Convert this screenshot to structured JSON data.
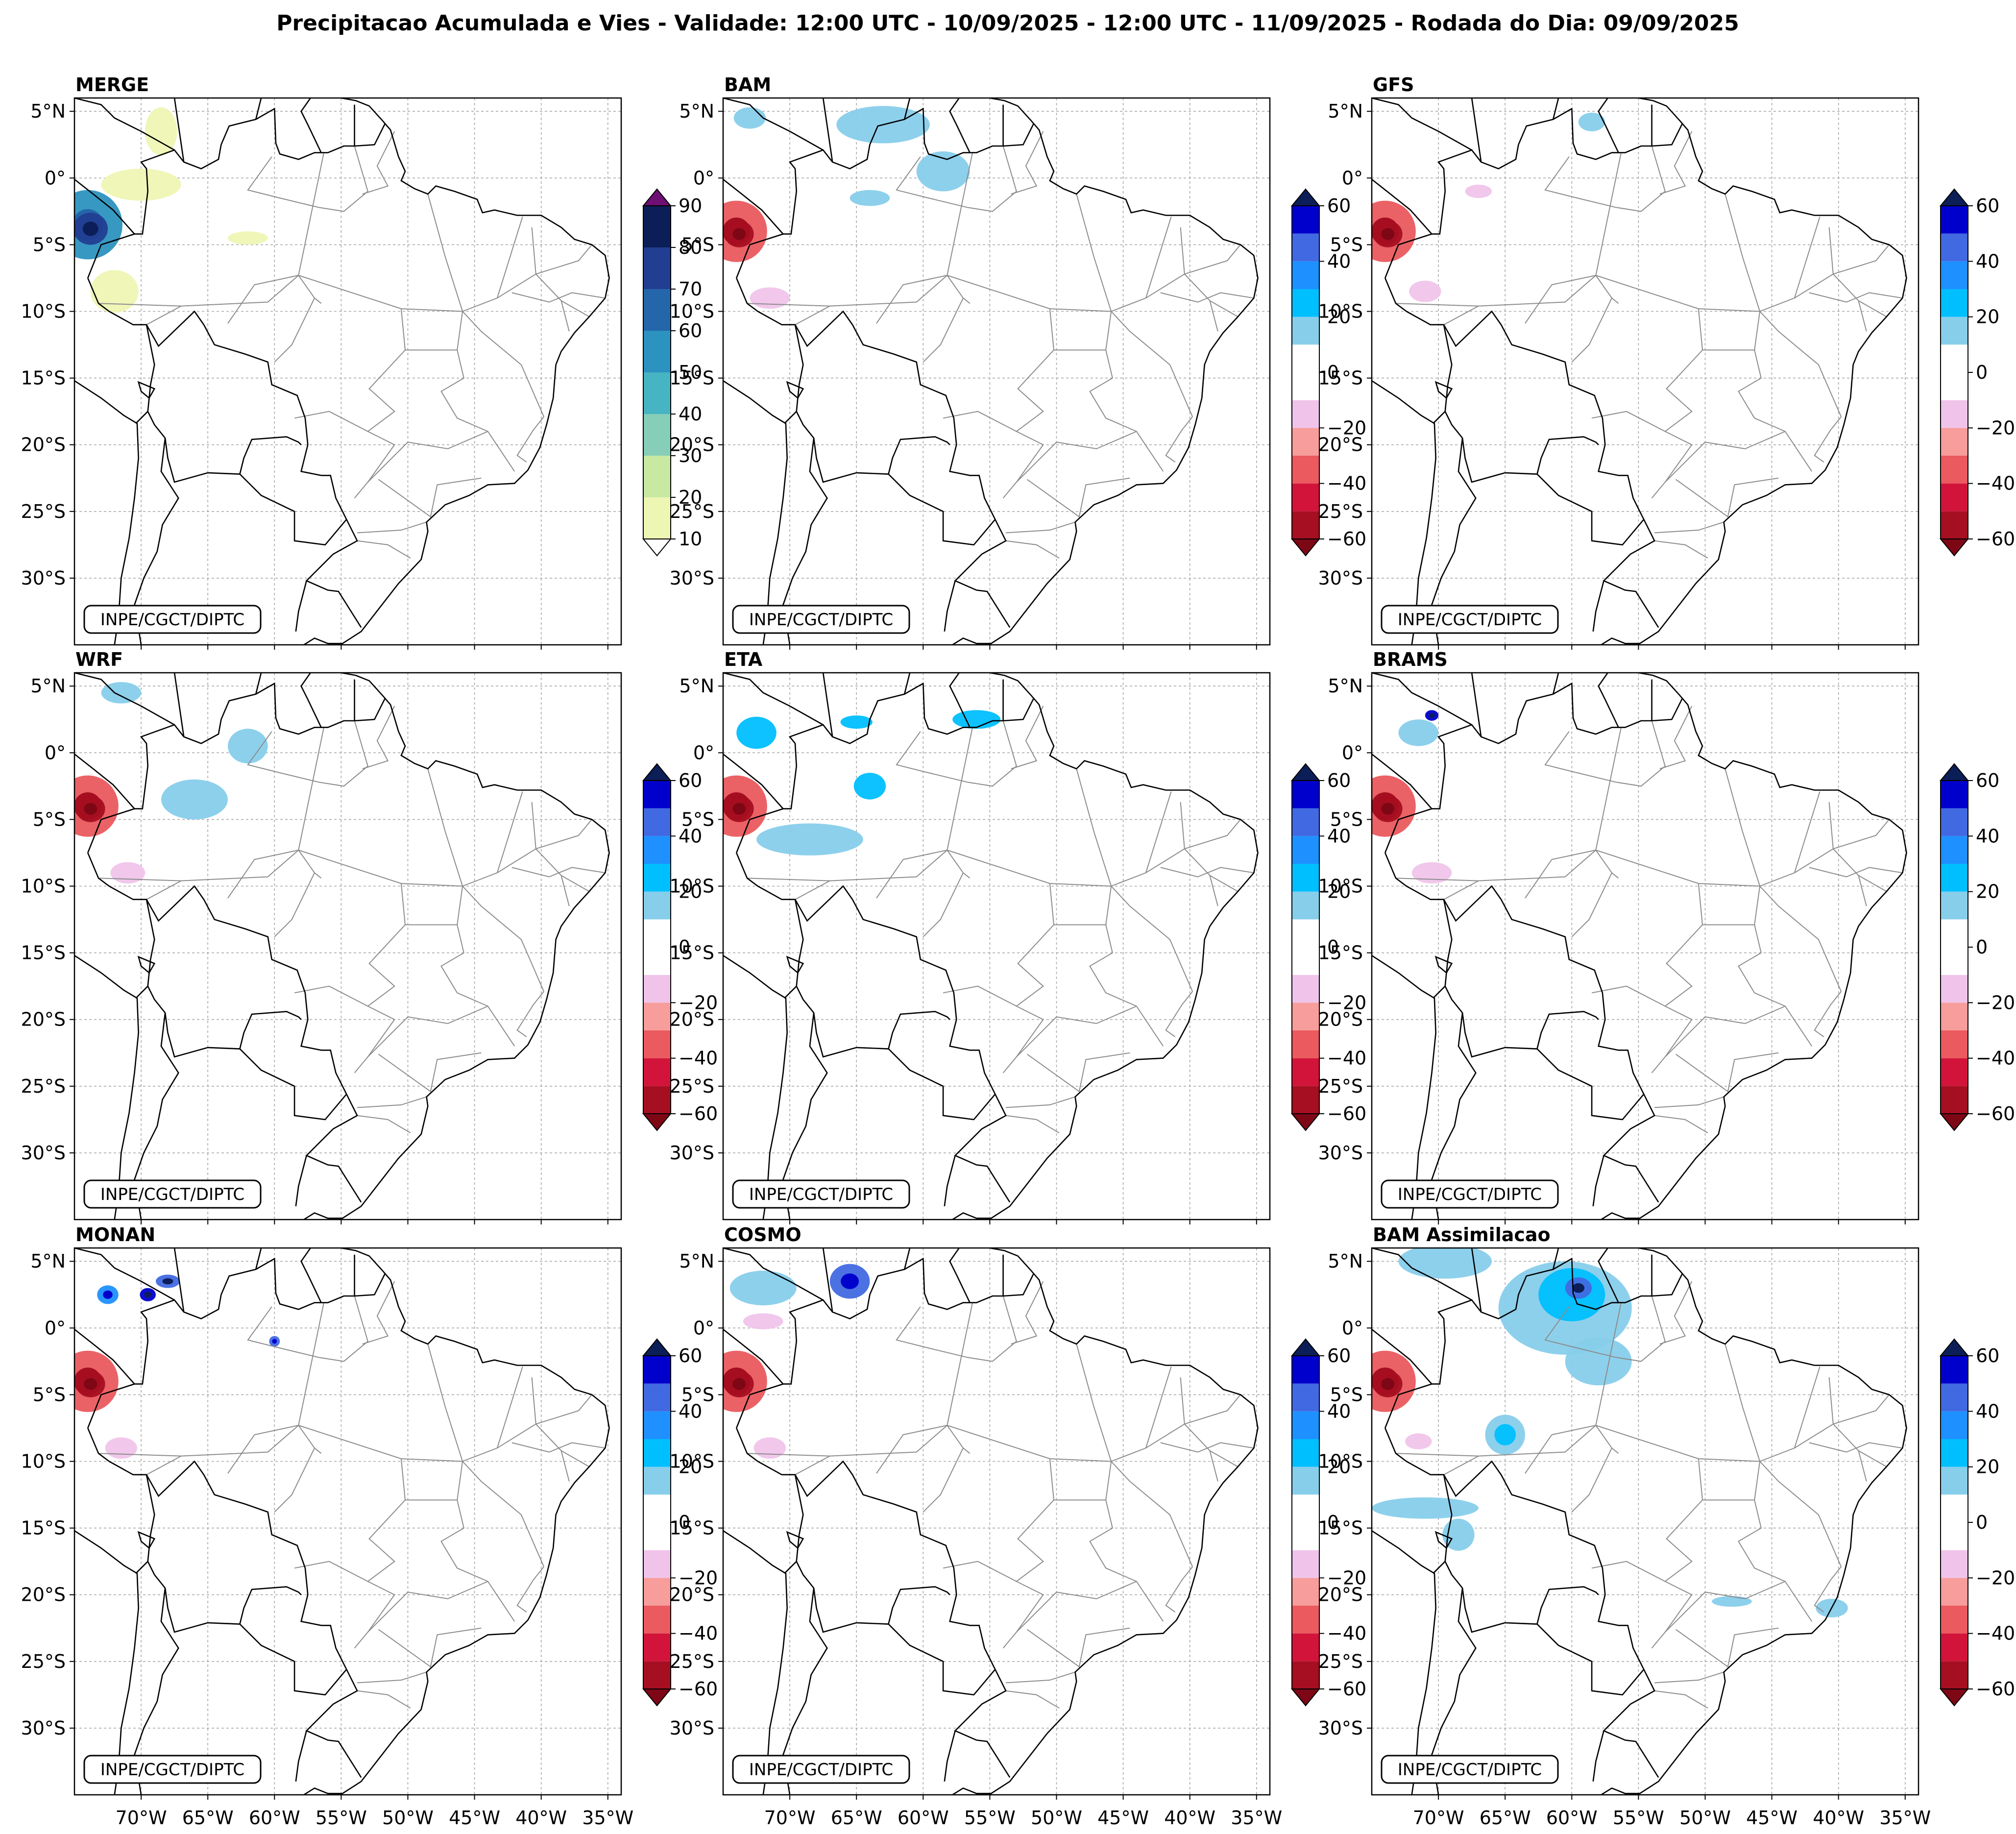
{
  "figure": {
    "title": "Precipitacao Acumulada e Vies - Validade: 12:00 UTC - 10/09/2025 - 12:00 UTC - 11/09/2025 - Rodada do Dia: 09/09/2025"
  },
  "credit_text": "INPE/CGCT/DIPTC",
  "chart_data": {
    "type": "heatmap",
    "description_units": "mm",
    "map_extent": {
      "lon": [
        -75,
        -34
      ],
      "lat": [
        -35,
        6
      ]
    },
    "lat_ticks": [
      {
        "value": 5,
        "label": "5°N"
      },
      {
        "value": 0,
        "label": "0°"
      },
      {
        "value": -5,
        "label": "5°S"
      },
      {
        "value": -10,
        "label": "10°S"
      },
      {
        "value": -15,
        "label": "15°S"
      },
      {
        "value": -20,
        "label": "20°S"
      },
      {
        "value": -25,
        "label": "25°S"
      },
      {
        "value": -30,
        "label": "30°S"
      }
    ],
    "lon_ticks": [
      {
        "value": -70,
        "label": "70°W"
      },
      {
        "value": -65,
        "label": "65°W"
      },
      {
        "value": -60,
        "label": "60°W"
      },
      {
        "value": -55,
        "label": "55°W"
      },
      {
        "value": -50,
        "label": "50°W"
      },
      {
        "value": -45,
        "label": "45°W"
      },
      {
        "value": -40,
        "label": "40°W"
      },
      {
        "value": -35,
        "label": "35°W"
      }
    ],
    "colorbars": {
      "precip": {
        "levels": [
          10,
          20,
          30,
          40,
          50,
          60,
          70,
          80,
          90
        ],
        "tick_labels": [
          "10",
          "20",
          "30",
          "40",
          "50",
          "60",
          "70",
          "80",
          "90"
        ],
        "colors": [
          "#eef6b4",
          "#c8e9a1",
          "#86ceb8",
          "#47b4c3",
          "#2c92bf",
          "#2466aa",
          "#223e92",
          "#0c1e57"
        ],
        "under_color": "#ffffff",
        "over_color": "#6d0f73"
      },
      "bias": {
        "levels": [
          -60,
          -50,
          -40,
          -30,
          -20,
          -10,
          10,
          20,
          30,
          40,
          50,
          60
        ],
        "tick_labels": [
          "-60",
          "-40",
          "-20",
          "0",
          "20",
          "40",
          "60"
        ],
        "tick_values": [
          -60,
          -40,
          -20,
          0,
          20,
          40,
          60
        ],
        "colors": [
          "#a50f21",
          "#d3143a",
          "#ea5a5e",
          "#f79d9b",
          "#f0c4ea",
          "#ffffff",
          "#87ceeb",
          "#00bfff",
          "#1e90ff",
          "#4169e1",
          "#0000cd"
        ],
        "under_color": "#7e0716",
        "over_color": "#0c1e57"
      }
    },
    "panels": [
      {
        "id": "merge",
        "title": "MERGE",
        "colorbar": "precip",
        "blobs": [
          {
            "lon": -74,
            "lat": -3.5,
            "rx": 2.6,
            "ry": 2.6,
            "value": 50
          },
          {
            "lon": -73.8,
            "lat": -3.8,
            "rx": 1.3,
            "ry": 1.2,
            "value": 70
          },
          {
            "lon": -72,
            "lat": -8.5,
            "rx": 1.8,
            "ry": 1.6,
            "value": 15
          },
          {
            "lon": -68.5,
            "lat": 3.5,
            "rx": 1.2,
            "ry": 1.8,
            "value": 15
          },
          {
            "lon": -70,
            "lat": -0.5,
            "rx": 3,
            "ry": 1.2,
            "value": 12
          },
          {
            "lon": -62,
            "lat": -4.5,
            "rx": 1.5,
            "ry": 0.5,
            "value": 12
          }
        ]
      },
      {
        "id": "bam",
        "title": "BAM",
        "colorbar": "bias",
        "blobs": [
          {
            "lon": -74,
            "lat": -4,
            "rx": 2.3,
            "ry": 2.3,
            "value": -40
          },
          {
            "lon": -73.8,
            "lat": -4.2,
            "rx": 1.1,
            "ry": 1,
            "value": -60
          },
          {
            "lon": -71.5,
            "lat": -9,
            "rx": 1.5,
            "ry": 0.8,
            "value": -15
          },
          {
            "lon": -63,
            "lat": 4,
            "rx": 3.5,
            "ry": 1.4,
            "value": 15
          },
          {
            "lon": -58.5,
            "lat": 0.5,
            "rx": 2,
            "ry": 1.5,
            "value": 15
          },
          {
            "lon": -64,
            "lat": -1.5,
            "rx": 1.5,
            "ry": 0.6,
            "value": 15
          },
          {
            "lon": -73,
            "lat": 4.5,
            "rx": 1.2,
            "ry": 0.8,
            "value": 15
          }
        ]
      },
      {
        "id": "gfs",
        "title": "GFS",
        "colorbar": "bias",
        "blobs": [
          {
            "lon": -74,
            "lat": -4,
            "rx": 2.3,
            "ry": 2.3,
            "value": -40
          },
          {
            "lon": -73.8,
            "lat": -4.2,
            "rx": 1.1,
            "ry": 1,
            "value": -60
          },
          {
            "lon": -71,
            "lat": -8.5,
            "rx": 1.2,
            "ry": 0.8,
            "value": -15
          },
          {
            "lon": -58.5,
            "lat": 4.2,
            "rx": 1,
            "ry": 0.7,
            "value": 15
          },
          {
            "lon": -67,
            "lat": -1,
            "rx": 1,
            "ry": 0.5,
            "value": -15
          }
        ]
      },
      {
        "id": "wrf",
        "title": "WRF",
        "colorbar": "bias",
        "blobs": [
          {
            "lon": -74,
            "lat": -4,
            "rx": 2.3,
            "ry": 2.3,
            "value": -40
          },
          {
            "lon": -73.8,
            "lat": -4.2,
            "rx": 1.1,
            "ry": 1,
            "value": -60
          },
          {
            "lon": -66,
            "lat": -3.5,
            "rx": 2.5,
            "ry": 1.5,
            "value": 15
          },
          {
            "lon": -62,
            "lat": 0.5,
            "rx": 1.5,
            "ry": 1.3,
            "value": 15
          },
          {
            "lon": -71.5,
            "lat": 4.5,
            "rx": 1.5,
            "ry": 0.8,
            "value": 15
          },
          {
            "lon": -71,
            "lat": -9,
            "rx": 1.3,
            "ry": 0.8,
            "value": -15
          }
        ]
      },
      {
        "id": "eta",
        "title": "ETA",
        "colorbar": "bias",
        "blobs": [
          {
            "lon": -74,
            "lat": -4,
            "rx": 2.3,
            "ry": 2.3,
            "value": -40
          },
          {
            "lon": -73.8,
            "lat": -4.2,
            "rx": 1.1,
            "ry": 1,
            "value": -60
          },
          {
            "lon": -72.5,
            "lat": 1.5,
            "rx": 1.5,
            "ry": 1.2,
            "value": 25
          },
          {
            "lon": -68.5,
            "lat": -6.5,
            "rx": 4,
            "ry": 1.2,
            "value": 15
          },
          {
            "lon": -64,
            "lat": -2.5,
            "rx": 1.2,
            "ry": 1,
            "value": 25
          },
          {
            "lon": -56,
            "lat": 2.5,
            "rx": 1.8,
            "ry": 0.7,
            "value": 25
          },
          {
            "lon": -65,
            "lat": 2.3,
            "rx": 1.2,
            "ry": 0.5,
            "value": 25
          }
        ]
      },
      {
        "id": "brams",
        "title": "BRAMS",
        "colorbar": "bias",
        "blobs": [
          {
            "lon": -74,
            "lat": -4,
            "rx": 2.3,
            "ry": 2.3,
            "value": -40
          },
          {
            "lon": -73.8,
            "lat": -4.2,
            "rx": 1.1,
            "ry": 1,
            "value": -60
          },
          {
            "lon": -71.5,
            "lat": 1.5,
            "rx": 1.5,
            "ry": 1,
            "value": 15
          },
          {
            "lon": -70.5,
            "lat": 2.8,
            "rx": 0.5,
            "ry": 0.4,
            "value": 55
          },
          {
            "lon": -70.5,
            "lat": -9,
            "rx": 1.5,
            "ry": 0.8,
            "value": -15
          }
        ]
      },
      {
        "id": "monan",
        "title": "MONAN",
        "colorbar": "bias",
        "blobs": [
          {
            "lon": -74,
            "lat": -4,
            "rx": 2.3,
            "ry": 2.3,
            "value": -40
          },
          {
            "lon": -73.8,
            "lat": -4.2,
            "rx": 1.1,
            "ry": 1,
            "value": -60
          },
          {
            "lon": -72.5,
            "lat": 2.5,
            "rx": 0.8,
            "ry": 0.7,
            "value": 35
          },
          {
            "lon": -69.5,
            "lat": 2.5,
            "rx": 0.6,
            "ry": 0.5,
            "value": 55
          },
          {
            "lon": -68,
            "lat": 3.5,
            "rx": 0.9,
            "ry": 0.5,
            "value": 45
          },
          {
            "lon": -71.5,
            "lat": -9,
            "rx": 1.2,
            "ry": 0.8,
            "value": -15
          },
          {
            "lon": -60,
            "lat": -1,
            "rx": 0.4,
            "ry": 0.4,
            "value": 40
          }
        ]
      },
      {
        "id": "cosmo",
        "title": "COSMO",
        "colorbar": "bias",
        "blobs": [
          {
            "lon": -74,
            "lat": -4,
            "rx": 2.3,
            "ry": 2.3,
            "value": -40
          },
          {
            "lon": -73.8,
            "lat": -4.2,
            "rx": 1.1,
            "ry": 1,
            "value": -60
          },
          {
            "lon": -65.5,
            "lat": 3.5,
            "rx": 1.5,
            "ry": 1.3,
            "value": 40
          },
          {
            "lon": -72,
            "lat": 3,
            "rx": 2.5,
            "ry": 1.3,
            "value": 15
          },
          {
            "lon": -72,
            "lat": 0.5,
            "rx": 1.5,
            "ry": 0.6,
            "value": -15
          },
          {
            "lon": -71.5,
            "lat": -9,
            "rx": 1.2,
            "ry": 0.8,
            "value": -15
          }
        ]
      },
      {
        "id": "bam_assim",
        "title": "BAM Assimilacao",
        "colorbar": "bias",
        "blobs": [
          {
            "lon": -74,
            "lat": -4,
            "rx": 2.3,
            "ry": 2.3,
            "value": -40
          },
          {
            "lon": -73.8,
            "lat": -4.2,
            "rx": 1.1,
            "ry": 1,
            "value": -60
          },
          {
            "lon": -60.5,
            "lat": 1.5,
            "rx": 5,
            "ry": 3.5,
            "value": 15
          },
          {
            "lon": -60,
            "lat": 2.5,
            "rx": 2.5,
            "ry": 2,
            "value": 25
          },
          {
            "lon": -59.5,
            "lat": 3,
            "rx": 1,
            "ry": 0.8,
            "value": 45
          },
          {
            "lon": -69.5,
            "lat": 5,
            "rx": 3.5,
            "ry": 1.3,
            "value": 15
          },
          {
            "lon": -65,
            "lat": -8,
            "rx": 1.5,
            "ry": 1.5,
            "value": 15
          },
          {
            "lon": -65,
            "lat": -8,
            "rx": 0.8,
            "ry": 0.8,
            "value": 25
          },
          {
            "lon": -58,
            "lat": -2.5,
            "rx": 2.5,
            "ry": 1.8,
            "value": 15
          },
          {
            "lon": -71,
            "lat": -13.5,
            "rx": 4,
            "ry": 0.8,
            "value": 15
          },
          {
            "lon": -68.5,
            "lat": -15.5,
            "rx": 1.2,
            "ry": 1.2,
            "value": 15
          },
          {
            "lon": -40.5,
            "lat": -21,
            "rx": 1.2,
            "ry": 0.7,
            "value": 15
          },
          {
            "lon": -48,
            "lat": -20.5,
            "rx": 1.5,
            "ry": 0.4,
            "value": 15
          },
          {
            "lon": -71.5,
            "lat": -8.5,
            "rx": 1,
            "ry": 0.6,
            "value": -15
          }
        ]
      }
    ]
  }
}
